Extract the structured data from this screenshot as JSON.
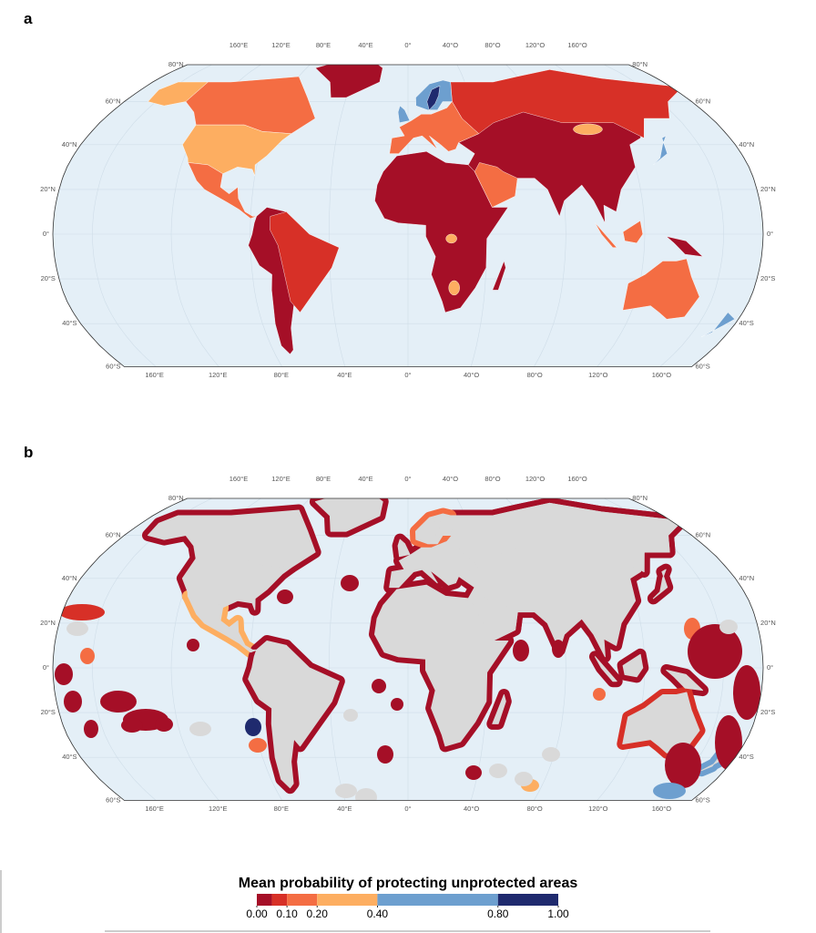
{
  "panel_labels": [
    "a",
    "b"
  ],
  "map": {
    "longitude_labels": [
      "160°E",
      "120°E",
      "80°E",
      "40°E",
      "0°",
      "40°O",
      "80°O",
      "120°O",
      "160°O"
    ],
    "latitude_labels": [
      "80°N",
      "60°N",
      "40°N",
      "20°N",
      "0°",
      "20°S",
      "40°S",
      "60°S"
    ]
  },
  "legend": {
    "title": "Mean probability of protecting unprotected areas",
    "bounds": [
      0,
      0.05,
      0.1,
      0.2,
      0.4,
      0.8,
      1.0
    ],
    "colors": [
      "#a50f27",
      "#d73027",
      "#f46d43",
      "#fdae61",
      "#6d9fcf",
      "#1f2a6e"
    ],
    "ticks": [
      {
        "value": 0,
        "label": "0.00"
      },
      {
        "value": 0.1,
        "label": "0.10"
      },
      {
        "value": 0.2,
        "label": "0.20"
      },
      {
        "value": 0.4,
        "label": "0.40"
      },
      {
        "value": 0.8,
        "label": "0.80"
      },
      {
        "value": 1.0,
        "label": "1.00"
      }
    ]
  }
}
